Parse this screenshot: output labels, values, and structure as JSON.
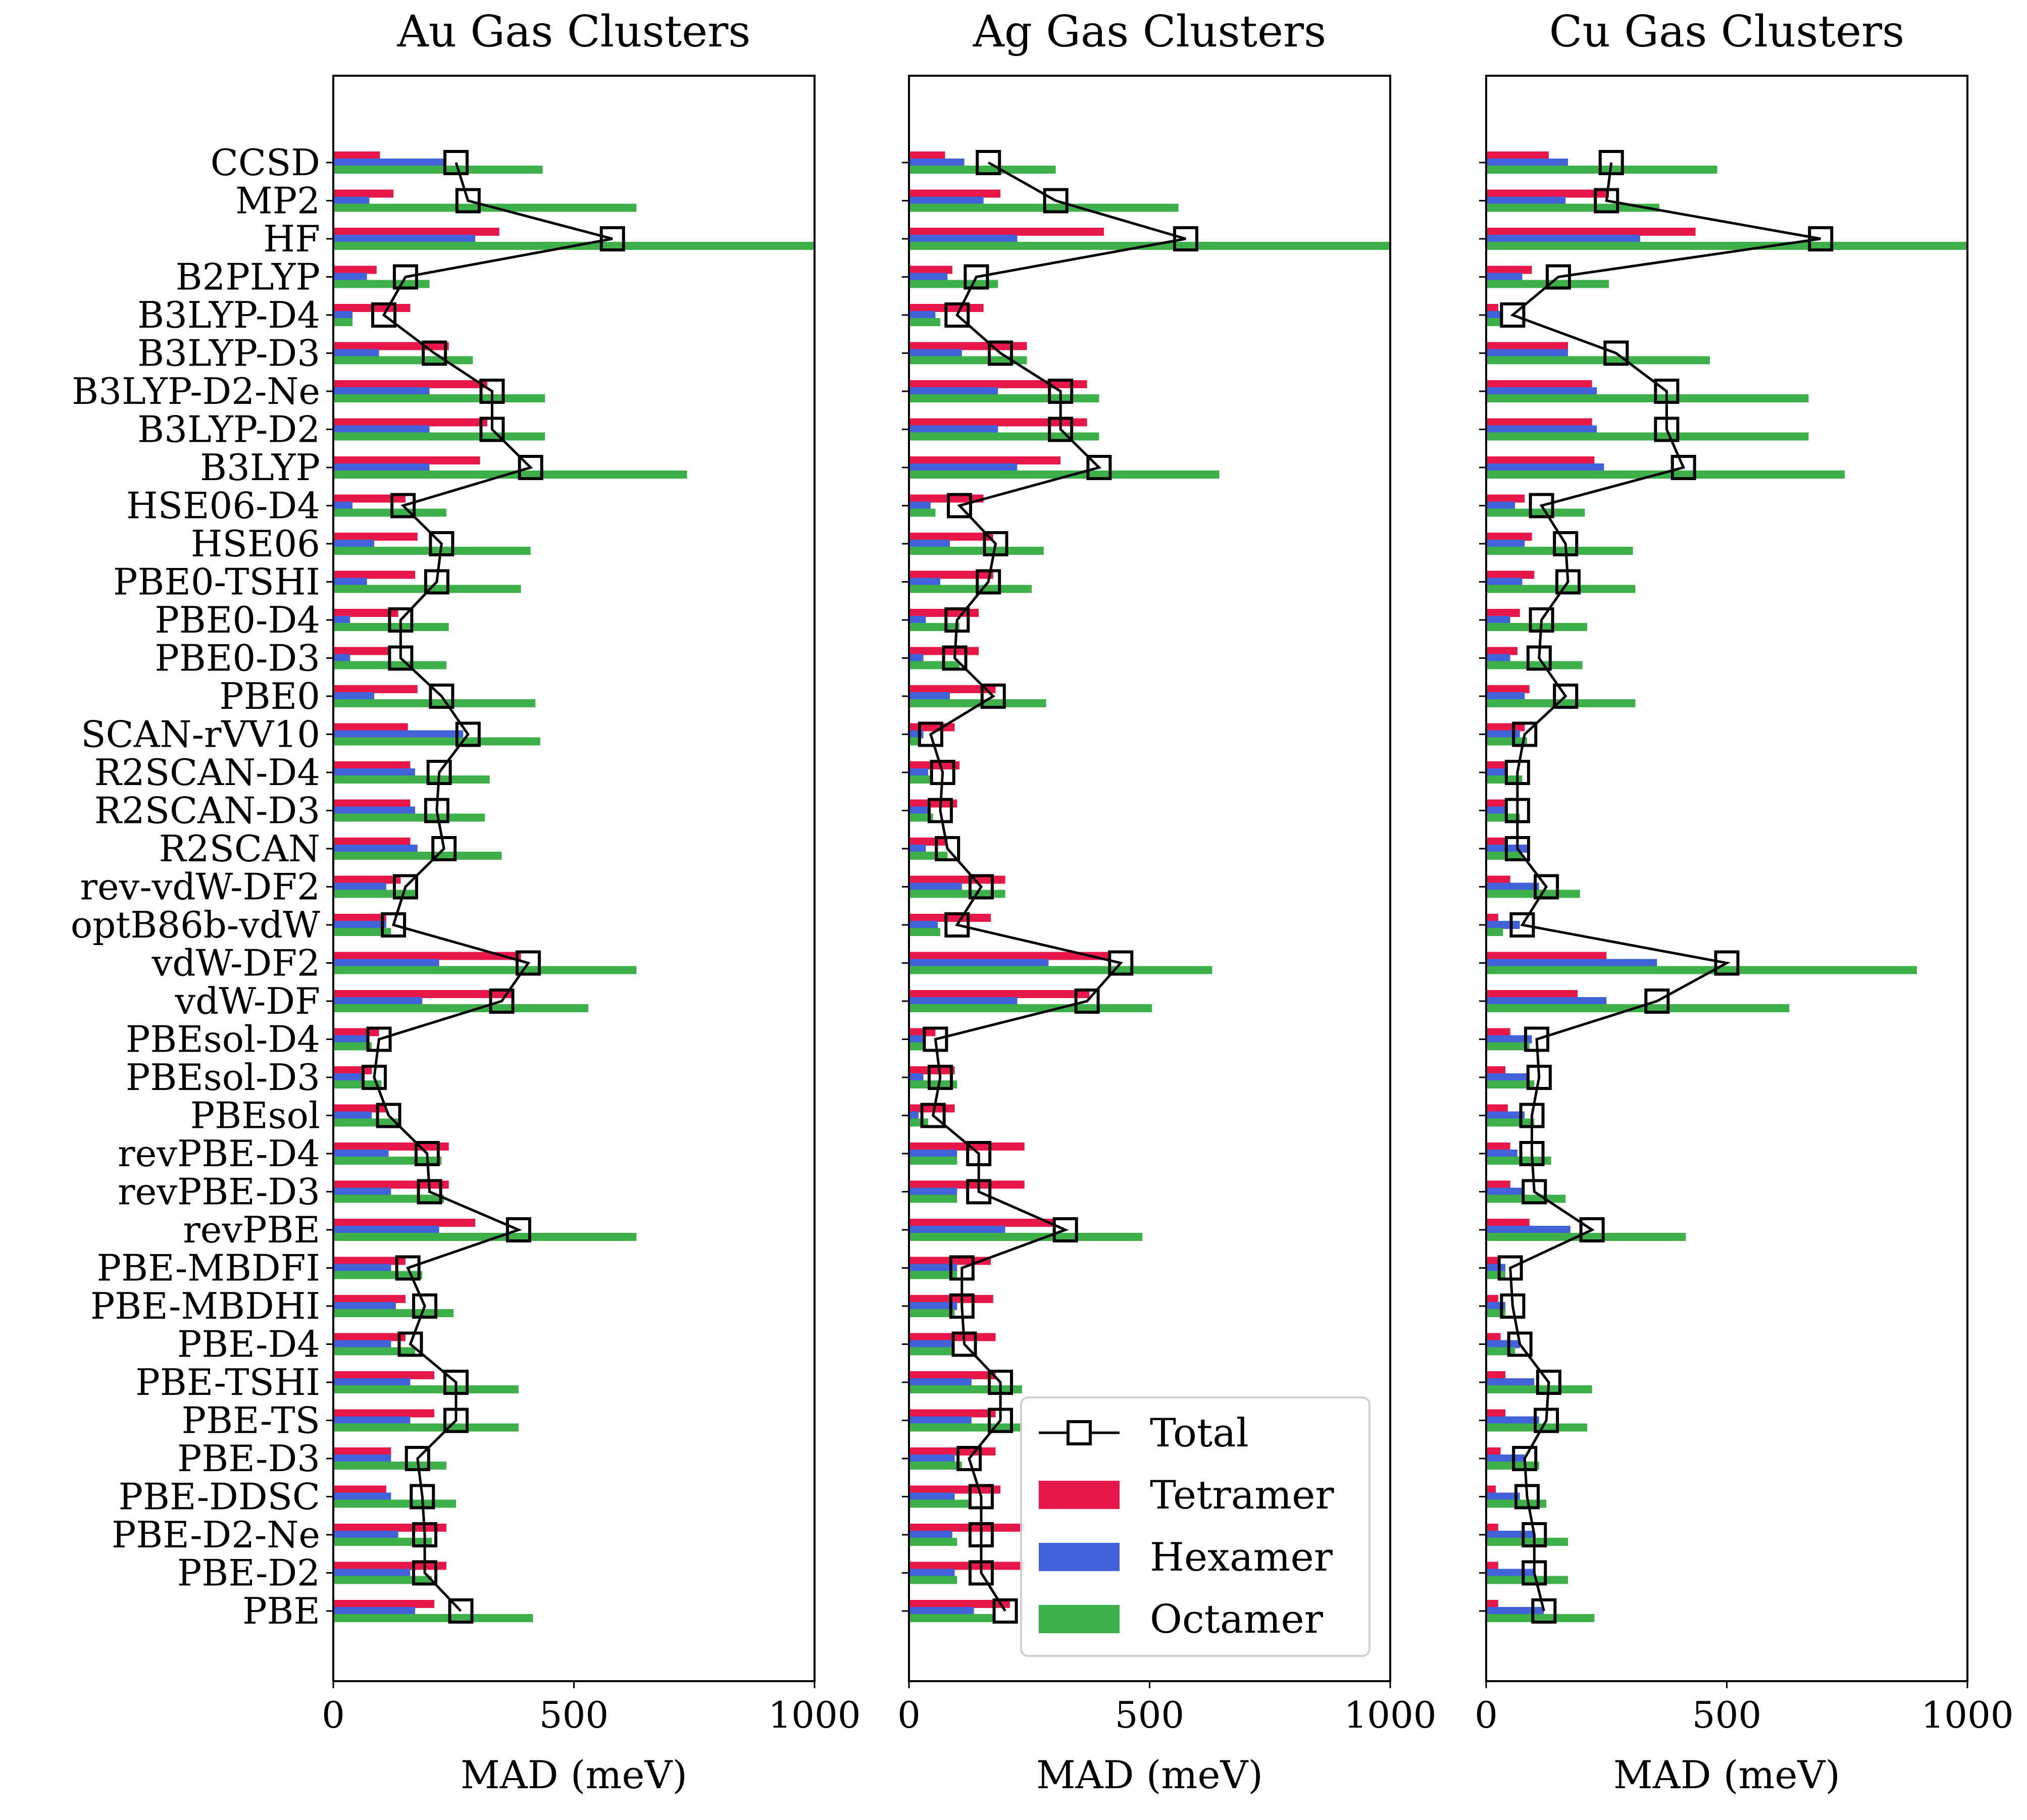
{
  "chart_data": {
    "type": "bar",
    "categories": [
      "CCSD",
      "MP2",
      "HF",
      "B2PLYP",
      "B3LYP-D4",
      "B3LYP-D3",
      "B3LYP-D2-Ne",
      "B3LYP-D2",
      "B3LYP",
      "HSE06-D4",
      "HSE06",
      "PBE0-TSHI",
      "PBE0-D4",
      "PBE0-D3",
      "PBE0",
      "SCAN-rVV10",
      "R2SCAN-D4",
      "R2SCAN-D3",
      "R2SCAN",
      "rev-vdW-DF2",
      "optB86b-vdW",
      "vdW-DF2",
      "vdW-DF",
      "PBEsol-D4",
      "PBEsol-D3",
      "PBEsol",
      "revPBE-D4",
      "revPBE-D3",
      "revPBE",
      "PBE-MBDFI",
      "PBE-MBDHI",
      "PBE-D4",
      "PBE-TSHI",
      "PBE-TS",
      "PBE-D3",
      "PBE-DDSC",
      "PBE-D2-Ne",
      "PBE-D2",
      "PBE"
    ],
    "xlabel": "MAD (meV)",
    "xlim": [
      0,
      1000
    ],
    "xticks": [
      "0",
      "500",
      "1000"
    ],
    "legend": {
      "position": "lower-right",
      "entries": [
        "Total",
        "Tetramer",
        "Hexamer",
        "Octamer"
      ]
    },
    "colors": {
      "Tetramer": "#e8174a",
      "Hexamer": "#4262d9",
      "Octamer": "#3db04a",
      "Total": "#000000"
    },
    "panels": [
      {
        "title": "Au Gas Clusters",
        "series": [
          {
            "name": "Tetramer",
            "values": [
              97,
              125,
              345,
              90,
              160,
              240,
              320,
              320,
              305,
              150,
              175,
              170,
              135,
              115,
              175,
              155,
              160,
              160,
              160,
              140,
              110,
              390,
              370,
              95,
              80,
              110,
              240,
              240,
              295,
              150,
              150,
              150,
              210,
              210,
              120,
              110,
              235,
              235,
              210
            ]
          },
          {
            "name": "Hexamer",
            "values": [
              230,
              75,
              295,
              70,
              40,
              95,
              200,
              200,
              200,
              40,
              85,
              70,
              35,
              35,
              85,
              270,
              170,
              170,
              175,
              110,
              110,
              220,
              185,
              70,
              60,
              80,
              115,
              120,
              220,
              120,
              130,
              120,
              160,
              160,
              120,
              120,
              135,
              160,
              170
            ]
          },
          {
            "name": "Octamer",
            "values": [
              435,
              630,
              1000,
              200,
              40,
              290,
              440,
              440,
              735,
              235,
              410,
              390,
              240,
              235,
              420,
              430,
              325,
              315,
              350,
              170,
              120,
              630,
              530,
              80,
              100,
              135,
              225,
              230,
              630,
              185,
              250,
              170,
              385,
              385,
              235,
              255,
              205,
              205,
              415
            ]
          },
          {
            "name": "Total",
            "values": [
              255,
              280,
              580,
              150,
              105,
              210,
              330,
              330,
              410,
              145,
              225,
              215,
              140,
              140,
              225,
              280,
              220,
              215,
              230,
              150,
              125,
              405,
              350,
              95,
              85,
              115,
              195,
              200,
              385,
              155,
              190,
              160,
              255,
              255,
              175,
              185,
              190,
              190,
              265
            ]
          }
        ]
      },
      {
        "title": "Ag Gas Clusters",
        "series": [
          {
            "name": "Tetramer",
            "values": [
              75,
              190,
              405,
              90,
              155,
              245,
              370,
              370,
              315,
              155,
              175,
              175,
              145,
              145,
              180,
              95,
              105,
              100,
              80,
              200,
              170,
              415,
              375,
              55,
              95,
              95,
              240,
              240,
              300,
              170,
              175,
              180,
              180,
              180,
              180,
              190,
              240,
              240,
              210
            ]
          },
          {
            "name": "Hexamer",
            "values": [
              115,
              155,
              225,
              80,
              55,
              110,
              185,
              185,
              225,
              45,
              85,
              65,
              35,
              30,
              85,
              30,
              40,
              40,
              35,
              110,
              60,
              290,
              225,
              35,
              30,
              20,
              100,
              100,
              200,
              100,
              100,
              90,
              130,
              130,
              95,
              95,
              90,
              95,
              135
            ]
          },
          {
            "name": "Octamer",
            "values": [
              305,
              560,
              1000,
              185,
              65,
              245,
              395,
              395,
              645,
              55,
              280,
              255,
              105,
              105,
              285,
              20,
              50,
              50,
              80,
              200,
              65,
              630,
              505,
              30,
              100,
              40,
              100,
              100,
              485,
              100,
              95,
              90,
              235,
              235,
              110,
              130,
              100,
              100,
              175
            ]
          },
          {
            "name": "Total",
            "values": [
              165,
              305,
              575,
              140,
              100,
              190,
              315,
              315,
              395,
              105,
              180,
              165,
              100,
              95,
              175,
              45,
              70,
              65,
              80,
              150,
              100,
              440,
              370,
              55,
              65,
              50,
              145,
              145,
              325,
              110,
              110,
              115,
              190,
              190,
              125,
              150,
              150,
              150,
              200
            ]
          }
        ]
      },
      {
        "title": "Cu Gas Clusters",
        "series": [
          {
            "name": "Tetramer",
            "values": [
              130,
              255,
              435,
              95,
              25,
              170,
              220,
              220,
              225,
              80,
              95,
              100,
              70,
              65,
              90,
              80,
              40,
              40,
              40,
              50,
              25,
              250,
              190,
              50,
              40,
              45,
              50,
              50,
              90,
              25,
              25,
              30,
              40,
              40,
              30,
              20,
              25,
              25,
              25
            ]
          },
          {
            "name": "Hexamer",
            "values": [
              170,
              165,
              320,
              75,
              35,
              170,
              230,
              230,
              245,
              60,
              80,
              75,
              50,
              50,
              80,
              70,
              45,
              45,
              90,
              110,
              70,
              355,
              250,
              95,
              90,
              80,
              65,
              75,
              175,
              40,
              40,
              70,
              100,
              110,
              80,
              70,
              100,
              100,
              120
            ]
          },
          {
            "name": "Octamer",
            "values": [
              480,
              360,
              1000,
              255,
              30,
              465,
              670,
              670,
              745,
              205,
              305,
              310,
              210,
              200,
              310,
              85,
              75,
              70,
              75,
              195,
              35,
              895,
              630,
              90,
              100,
              100,
              135,
              165,
              415,
              40,
              40,
              60,
              220,
              210,
              110,
              125,
              170,
              170,
              225
            ]
          },
          {
            "name": "Total",
            "values": [
              260,
              250,
              695,
              150,
              55,
              270,
              375,
              375,
              410,
              115,
              165,
              170,
              115,
              110,
              165,
              80,
              65,
              65,
              65,
              125,
              75,
              500,
              355,
              105,
              110,
              95,
              95,
              100,
              220,
              50,
              55,
              70,
              130,
              125,
              80,
              85,
              100,
              100,
              120
            ]
          }
        ]
      }
    ]
  }
}
